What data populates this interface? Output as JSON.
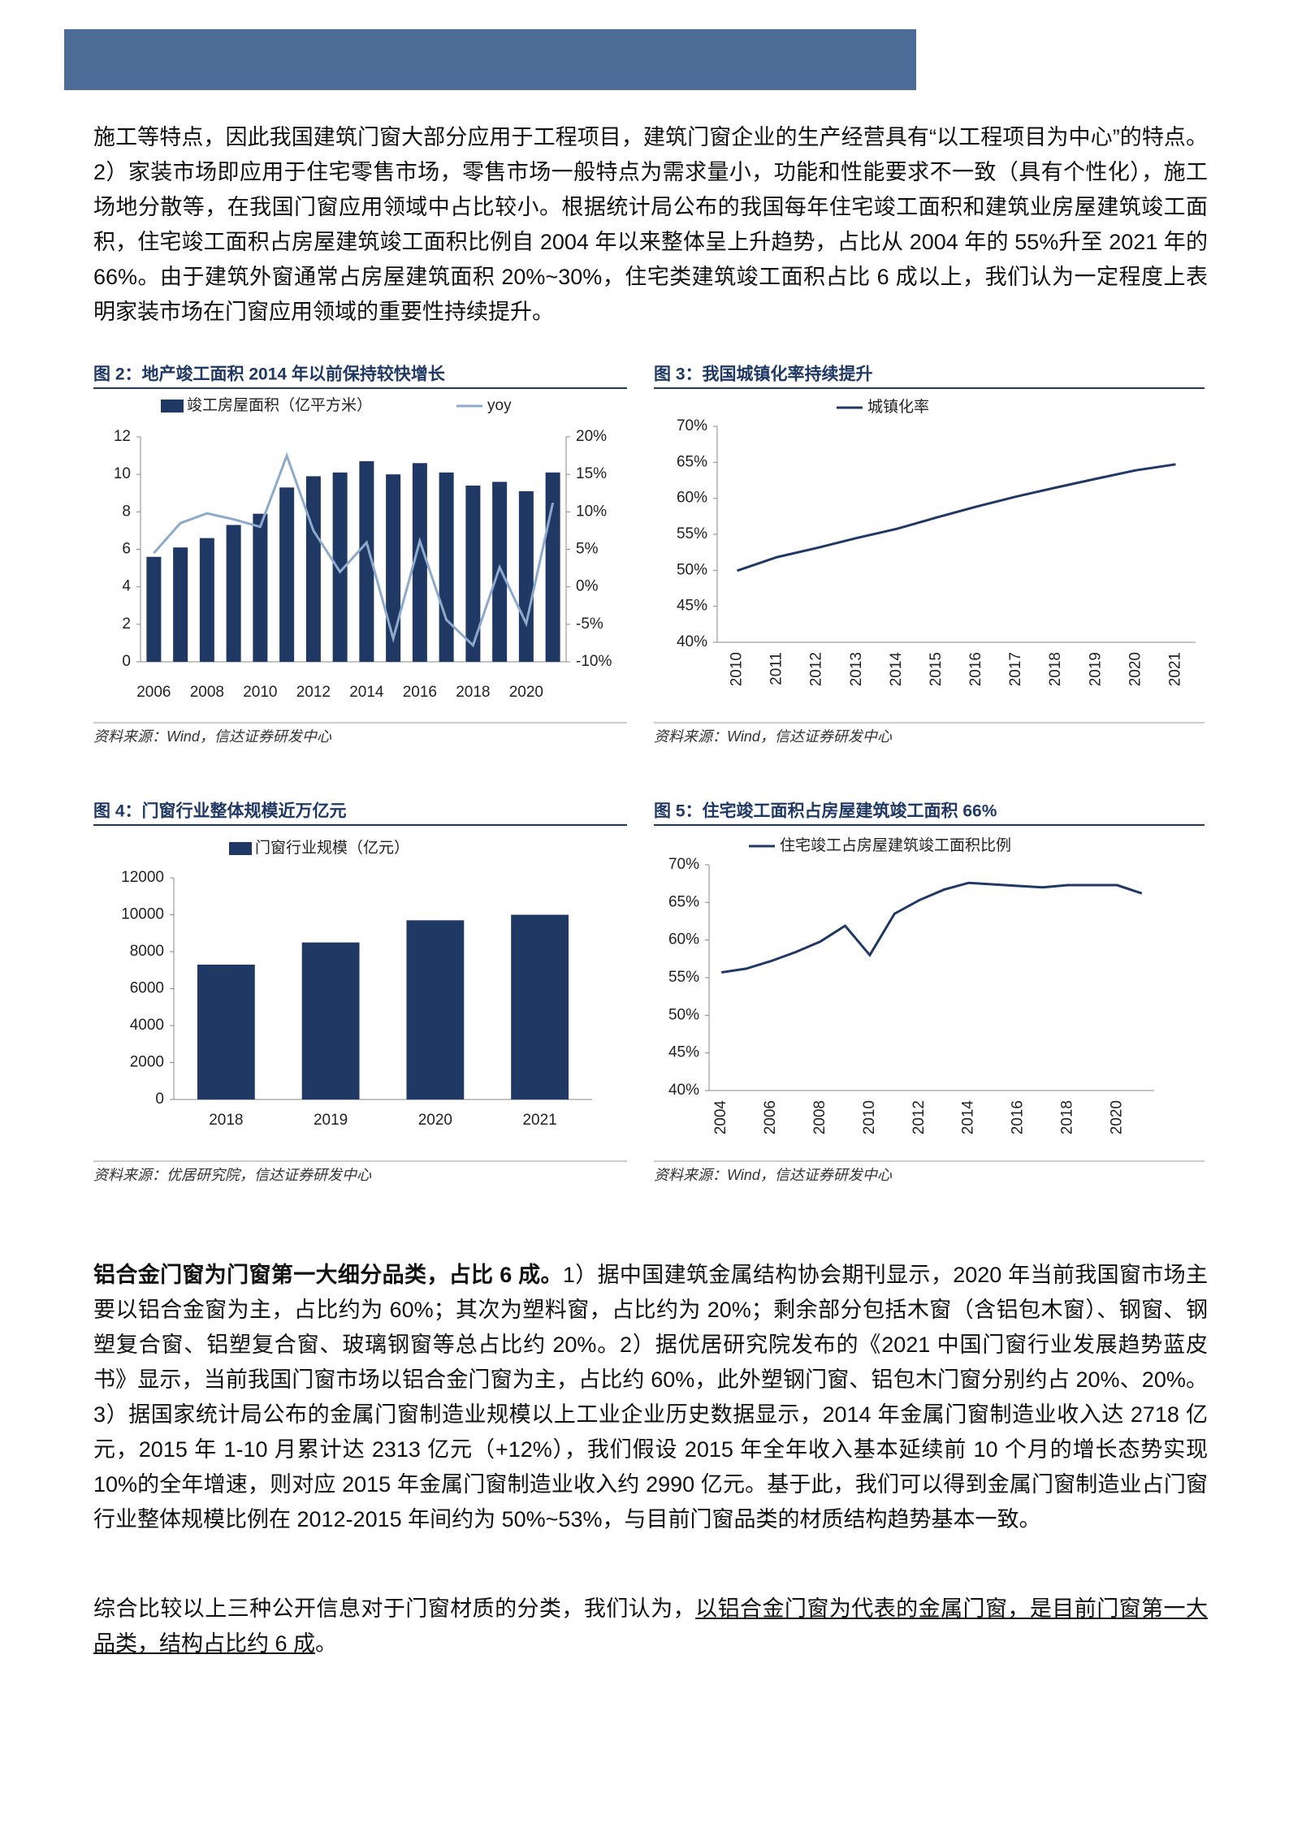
{
  "paragraphs": [
    {
      "text": "施工等特点，因此我国建筑门窗大部分应用于工程项目，建筑门窗企业的生产经营具有“以工程项目为中心”的特点。2）家装市场即应用于住宅零售市场，零售市场一般特点为需求量小，功能和性能要求不一致（具有个性化），施工场地分散等，在我国门窗应用领域中占比较小。根据统计局公布的我国每年住宅竣工面积和建筑业房屋建筑竣工面积，住宅竣工面积占房屋建筑竣工面积比例自 2004 年以来整体呈上升趋势，占比从 2004 年的 55%升至 2021 年的 66%。由于建筑外窗通常占房屋建筑面积 20%~30%，住宅类建筑竣工面积占比 6 成以上，我们认为一定程度上表明家装市场在门窗应用领域的重要性持续提升。"
    },
    {
      "bold": "铝合金门窗为门窗第一大细分品类，占比 6 成。",
      "text": "1）据中国建筑金属结构协会期刊显示，2020 年当前我国窗市场主要以铝合金窗为主，占比约为 60%；其次为塑料窗，占比约为 20%；剩余部分包括木窗（含铝包木窗）、钢窗、钢塑复合窗、铝塑复合窗、玻璃钢窗等总占比约 20%。2）据优居研究院发布的《2021 中国门窗行业发展趋势蓝皮书》显示，当前我国门窗市场以铝合金门窗为主，占比约 60%，此外塑钢门窗、铝包木门窗分别约占 20%、20%。3）据国家统计局公布的金属门窗制造业规模以上工业企业历史数据显示，2014 年金属门窗制造业收入达 2718 亿元，2015 年 1-10 月累计达 2313 亿元（+12%），我们假设 2015 年全年收入基本延续前 10 个月的增长态势实现 10%的全年增速，则对应 2015 年金属门窗制造业收入约 2990 亿元。基于此，我们可以得到金属门窗制造业占门窗行业整体规模比例在 2012-2015 年间约为 50%~53%，与目前门窗品类的材质结构趋势基本一致。"
    },
    {
      "text": "综合比较以上三种公开信息对于门窗材质的分类，我们认为，",
      "underline": "以铝合金门窗为代表的金属门窗，是目前门窗第一大品类，结构占比约 6 成",
      "end": "。"
    }
  ],
  "chart_data": [
    {
      "type": "bar",
      "title": "图 2：地产竣工面积 2014 年以前保持较快增长",
      "source": "资料来源：Wind，信达证券研发中心",
      "categories": [
        "2006",
        null,
        "2008",
        null,
        "2010",
        null,
        "2012",
        null,
        "2014",
        null,
        "2016",
        null,
        "2018",
        null,
        "2020",
        null
      ],
      "series": [
        {
          "name": "竣工房屋面积（亿平方米）",
          "type": "bar",
          "color": "#1f3864",
          "values": [
            5.6,
            6.1,
            6.6,
            7.3,
            7.9,
            9.3,
            9.9,
            10.1,
            10.7,
            10.0,
            10.6,
            10.1,
            9.4,
            9.6,
            9.1,
            10.1
          ]
        },
        {
          "name": "yoy",
          "type": "line",
          "axis": "y2",
          "color": "#8eaacb",
          "values": [
            4.5,
            8.5,
            9.8,
            9.0,
            8.0,
            17.5,
            7.5,
            2.0,
            5.9,
            -6.9,
            6.1,
            -4.4,
            -7.8,
            2.6,
            -4.9,
            11.2
          ]
        }
      ],
      "ylim": [
        0,
        12
      ],
      "yticks": [
        0,
        2,
        4,
        6,
        8,
        10,
        12
      ],
      "y2lim": [
        -10,
        20
      ],
      "y2ticks": [
        {
          "value": -10,
          "label": "-10%"
        },
        {
          "value": -5,
          "label": "-5%"
        },
        {
          "value": 0,
          "label": "0%"
        },
        {
          "value": 5,
          "label": "5%"
        },
        {
          "value": 10,
          "label": "10%"
        },
        {
          "value": 15,
          "label": "15%"
        },
        {
          "value": 20,
          "label": "20%"
        }
      ],
      "grid": false
    },
    {
      "type": "line",
      "title": "图 3：我国城镇化率持续提升",
      "source": "资料来源：Wind，信达证券研发中心",
      "categories": [
        "2010",
        "2011",
        "2012",
        "2013",
        "2014",
        "2015",
        "2016",
        "2017",
        "2018",
        "2019",
        "2020",
        "2021"
      ],
      "series": [
        {
          "name": "城镇化率",
          "color": "#1f3864",
          "values": [
            49.95,
            51.83,
            53.1,
            54.49,
            55.75,
            57.33,
            58.84,
            60.24,
            61.5,
            62.71,
            63.89,
            64.72
          ]
        }
      ],
      "ylim": [
        40,
        70
      ],
      "yticks": [
        {
          "value": 40,
          "label": "40%"
        },
        {
          "value": 45,
          "label": "45%"
        },
        {
          "value": 50,
          "label": "50%"
        },
        {
          "value": 55,
          "label": "55%"
        },
        {
          "value": 60,
          "label": "60%"
        },
        {
          "value": 65,
          "label": "65%"
        },
        {
          "value": 70,
          "label": "70%"
        }
      ],
      "grid": false
    },
    {
      "type": "bar",
      "title": "图 4：门窗行业整体规模近万亿元",
      "source": "资料来源：优居研究院，信达证券研发中心",
      "categories": [
        "2018",
        "2019",
        "2020",
        "2021"
      ],
      "series": [
        {
          "name": "门窗行业规模（亿元）",
          "type": "bar",
          "color": "#1f3864",
          "values": [
            7300,
            8500,
            9700,
            10000
          ]
        }
      ],
      "ylim": [
        0,
        12000
      ],
      "yticks": [
        0,
        2000,
        4000,
        6000,
        8000,
        10000,
        12000
      ],
      "grid": false
    },
    {
      "type": "line",
      "title": "图 5：住宅竣工面积占房屋建筑竣工面积 66%",
      "source": "资料来源：Wind，信达证券研发中心",
      "categories": [
        "2004",
        null,
        "2006",
        null,
        "2008",
        null,
        "2010",
        null,
        "2012",
        null,
        "2014",
        null,
        "2016",
        null,
        "2018",
        null,
        "2020",
        null
      ],
      "series": [
        {
          "name": "住宅竣工占房屋建筑竣工面积比例",
          "color": "#1f3864",
          "values": [
            55.7,
            56.2,
            57.2,
            58.4,
            59.8,
            61.9,
            58.0,
            63.5,
            65.3,
            66.7,
            67.6,
            67.4,
            67.2,
            67.0,
            67.3,
            67.3,
            67.3,
            66.2
          ]
        }
      ],
      "ylim": [
        40,
        70
      ],
      "yticks": [
        {
          "value": 40,
          "label": "40%"
        },
        {
          "value": 45,
          "label": "45%"
        },
        {
          "value": 50,
          "label": "50%"
        },
        {
          "value": 55,
          "label": "55%"
        },
        {
          "value": 60,
          "label": "60%"
        },
        {
          "value": 65,
          "label": "65%"
        },
        {
          "value": 70,
          "label": "70%"
        }
      ],
      "grid": false
    }
  ]
}
